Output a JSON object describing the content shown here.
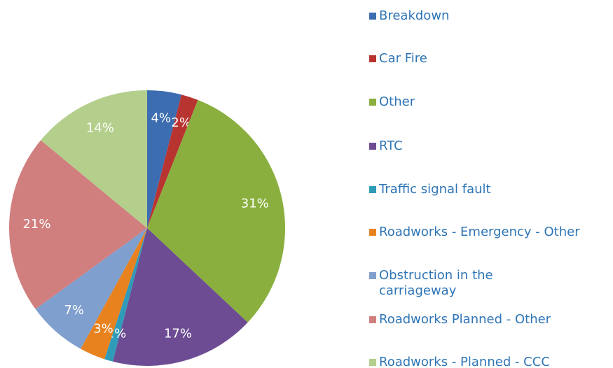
{
  "chart_data": {
    "type": "pie",
    "categories": [
      "Breakdown",
      "Car Fire",
      "Other",
      "RTC",
      "Traffic signal fault",
      "Roadworks - Emergency - Other",
      "Obstruction in the carriageway",
      "Roadworks Planned - Other",
      "Roadworks - Planned - CCC"
    ],
    "values": [
      4,
      2,
      31,
      17,
      1,
      3,
      7,
      21,
      14
    ],
    "value_labels": [
      "4%",
      "2%",
      "31%",
      "17%",
      "1%",
      "3%",
      "7%",
      "21%",
      "14%"
    ],
    "colors": [
      "#3c6db0",
      "#b83431",
      "#8aaf3e",
      "#6d4c93",
      "#2f9bb8",
      "#e8821f",
      "#7f9fcf",
      "#d07f7e",
      "#b4cf8c"
    ],
    "legend": "right"
  }
}
